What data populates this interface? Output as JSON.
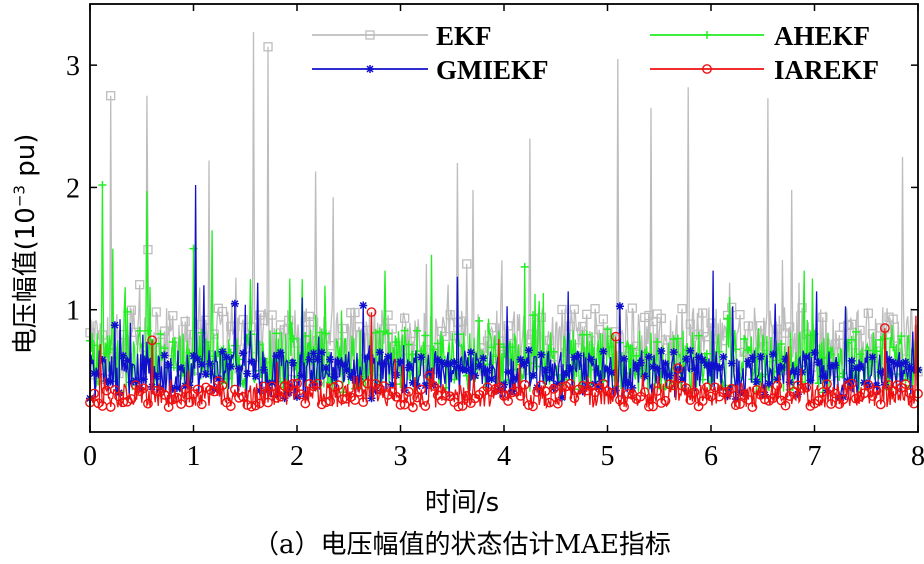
{
  "chart_data": {
    "type": "line",
    "title": "",
    "caption": "（a）电压幅值的状态估计MAE指标",
    "xlabel": "时间/s",
    "ylabel": {
      "prefix": "电压幅值(10",
      "exp": "−3",
      "suffix": " pu)"
    },
    "xlim": [
      0,
      8
    ],
    "ylim": [
      0,
      3.5
    ],
    "xticks": [
      "0",
      "1",
      "2",
      "3",
      "4",
      "5",
      "6",
      "7",
      "8"
    ],
    "yticks": [
      "1",
      "2",
      "3"
    ],
    "legend_position": "top",
    "series": [
      {
        "name": "EKF",
        "color": "#bdbdbd",
        "marker": "square",
        "baseline": 0.72,
        "noise": 0.3,
        "min": 0.12,
        "peaks": [
          [
            0.55,
            2.75
          ],
          [
            1.15,
            2.22
          ],
          [
            1.58,
            3.27
          ],
          [
            1.72,
            3.15
          ],
          [
            2.18,
            2.13
          ],
          [
            3.55,
            2.2
          ],
          [
            3.7,
            1.98
          ],
          [
            4.25,
            2.4
          ],
          [
            5.1,
            3.05
          ],
          [
            5.42,
            2.65
          ],
          [
            5.78,
            2.82
          ],
          [
            6.55,
            2.73
          ],
          [
            6.78,
            1.98
          ],
          [
            7.85,
            2.25
          ],
          [
            0.2,
            2.75
          ],
          [
            2.35,
            1.92
          ]
        ]
      },
      {
        "name": "AHEKF",
        "color": "#22ee22",
        "marker": "plus",
        "baseline": 0.58,
        "noise": 0.26,
        "min": 0.14,
        "peaks": [
          [
            0.12,
            2.02
          ],
          [
            0.22,
            1.5
          ],
          [
            0.55,
            1.97
          ],
          [
            1.0,
            1.5
          ],
          [
            1.18,
            1.65
          ],
          [
            1.55,
            1.25
          ],
          [
            2.05,
            1.25
          ],
          [
            2.85,
            1.32
          ],
          [
            3.3,
            1.45
          ],
          [
            4.2,
            1.35
          ],
          [
            6.9,
            1.32
          ],
          [
            7.3,
            1.0
          ]
        ]
      },
      {
        "name": "GMIEKF",
        "color": "#1010cc",
        "marker": "asterisk",
        "baseline": 0.47,
        "noise": 0.2,
        "min": 0.18,
        "peaks": [
          [
            1.02,
            2.02
          ],
          [
            1.1,
            1.2
          ],
          [
            1.62,
            1.22
          ],
          [
            2.05,
            1.1
          ],
          [
            3.55,
            1.27
          ],
          [
            4.62,
            1.15
          ],
          [
            6.02,
            1.32
          ],
          [
            6.62,
            1.05
          ],
          [
            7.02,
            1.15
          ],
          [
            7.95,
            0.82
          ]
        ]
      },
      {
        "name": "IAREKF",
        "color": "#ee1111",
        "marker": "circle",
        "baseline": 0.3,
        "noise": 0.1,
        "min": 0.1,
        "peaks": [
          [
            0.1,
            0.72
          ],
          [
            0.6,
            0.75
          ],
          [
            2.72,
            0.98
          ],
          [
            2.95,
            0.6
          ],
          [
            3.95,
            0.76
          ],
          [
            5.08,
            0.78
          ],
          [
            6.75,
            0.7
          ],
          [
            7.68,
            0.85
          ],
          [
            7.98,
            0.95
          ]
        ]
      }
    ]
  }
}
